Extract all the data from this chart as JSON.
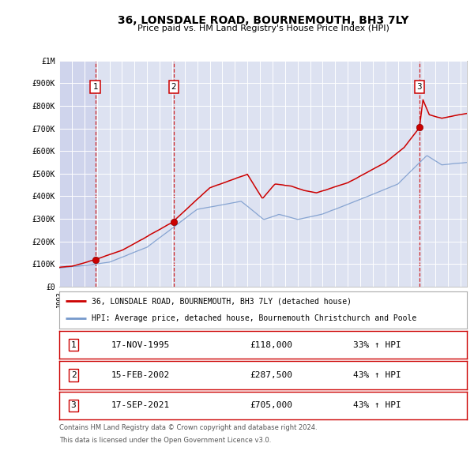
{
  "title": "36, LONSDALE ROAD, BOURNEMOUTH, BH3 7LY",
  "subtitle": "Price paid vs. HM Land Registry's House Price Index (HPI)",
  "background_color": "#ffffff",
  "plot_bg_color": "#dde2f0",
  "grid_color": "#ffffff",
  "red_line_color": "#cc0000",
  "blue_line_color": "#7799cc",
  "dashed_vline_color": "#cc0000",
  "marker_color": "#cc0000",
  "sale_points": [
    {
      "label": "1",
      "date_str": "17-NOV-1995",
      "year": 1995.88,
      "price": 118000
    },
    {
      "label": "2",
      "date_str": "15-FEB-2002",
      "year": 2002.12,
      "price": 287500
    },
    {
      "label": "3",
      "date_str": "17-SEP-2021",
      "year": 2021.71,
      "price": 705000
    }
  ],
  "legend_line1": "36, LONSDALE ROAD, BOURNEMOUTH, BH3 7LY (detached house)",
  "legend_line2": "HPI: Average price, detached house, Bournemouth Christchurch and Poole",
  "table_rows": [
    [
      "1",
      "17-NOV-1995",
      "£118,000",
      "33% ↑ HPI"
    ],
    [
      "2",
      "15-FEB-2002",
      "£287,500",
      "43% ↑ HPI"
    ],
    [
      "3",
      "17-SEP-2021",
      "£705,000",
      "43% ↑ HPI"
    ]
  ],
  "footer_line1": "Contains HM Land Registry data © Crown copyright and database right 2024.",
  "footer_line2": "This data is licensed under the Open Government Licence v3.0.",
  "xmin": 1993,
  "xmax": 2025.5,
  "ymin": 0,
  "ymax": 1000000,
  "yticks": [
    0,
    100000,
    200000,
    300000,
    400000,
    500000,
    600000,
    700000,
    800000,
    900000,
    1000000
  ],
  "ytick_labels": [
    "£0",
    "£100K",
    "£200K",
    "£300K",
    "£400K",
    "£500K",
    "£600K",
    "£700K",
    "£800K",
    "£900K",
    "£1M"
  ]
}
